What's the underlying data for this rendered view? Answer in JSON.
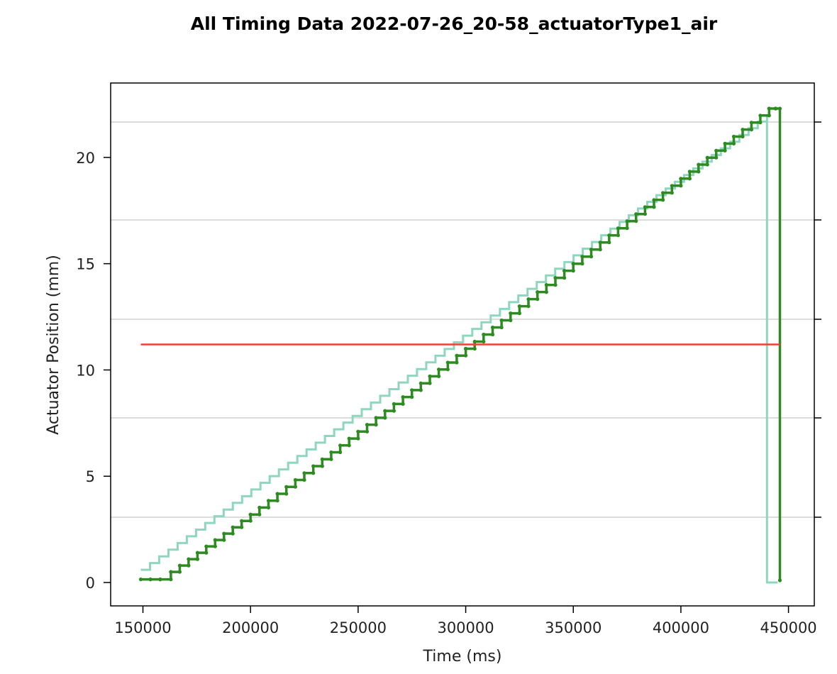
{
  "chart_data": {
    "type": "line",
    "title": "All Timing Data 2022-07-26_20-58_actuatorType1_air",
    "xlabel": "Time (ms)",
    "ylabel": "Actuator Position (mm)",
    "xlim": [
      135000,
      462000
    ],
    "ylim": [
      -1.1,
      23.5
    ],
    "xticks": [
      150000,
      200000,
      250000,
      300000,
      350000,
      400000,
      450000
    ],
    "xtick_labels": [
      "150000",
      "200000",
      "250000",
      "300000",
      "350000",
      "400000",
      "450000"
    ],
    "yticks": [
      0,
      5,
      10,
      15,
      20
    ],
    "ytick_labels": [
      "0",
      "5",
      "10",
      "15",
      "20"
    ],
    "secondary_y_axis": {
      "side": "right",
      "tick_labels_visible": false,
      "gridlines": "horizontal at secondary ticks"
    },
    "colors": {
      "commanded": "#8fd6bf",
      "measured": "#2e8b22",
      "threshold": "#f04030",
      "grid": "#c8c8c8"
    },
    "series": [
      {
        "style": "step",
        "color": "#8fd6bf",
        "x": [
          149000,
          440000,
          440000,
          445000
        ],
        "y": [
          0.6,
          22.0,
          0.0,
          0.0
        ]
      },
      {
        "style": "step-markers",
        "color": "#2e8b22",
        "x": [
          149000,
          158000,
          163000,
          200000,
          250000,
          300000,
          350000,
          400000,
          441000,
          444000,
          446000
        ],
        "y": [
          0.15,
          0.15,
          0.5,
          3.2,
          7.1,
          11.0,
          15.0,
          19.0,
          22.3,
          22.3,
          0.1
        ]
      },
      {
        "style": "line",
        "color": "#f04030",
        "x": [
          149000,
          446000
        ],
        "y": [
          11.2,
          11.2
        ]
      }
    ]
  }
}
